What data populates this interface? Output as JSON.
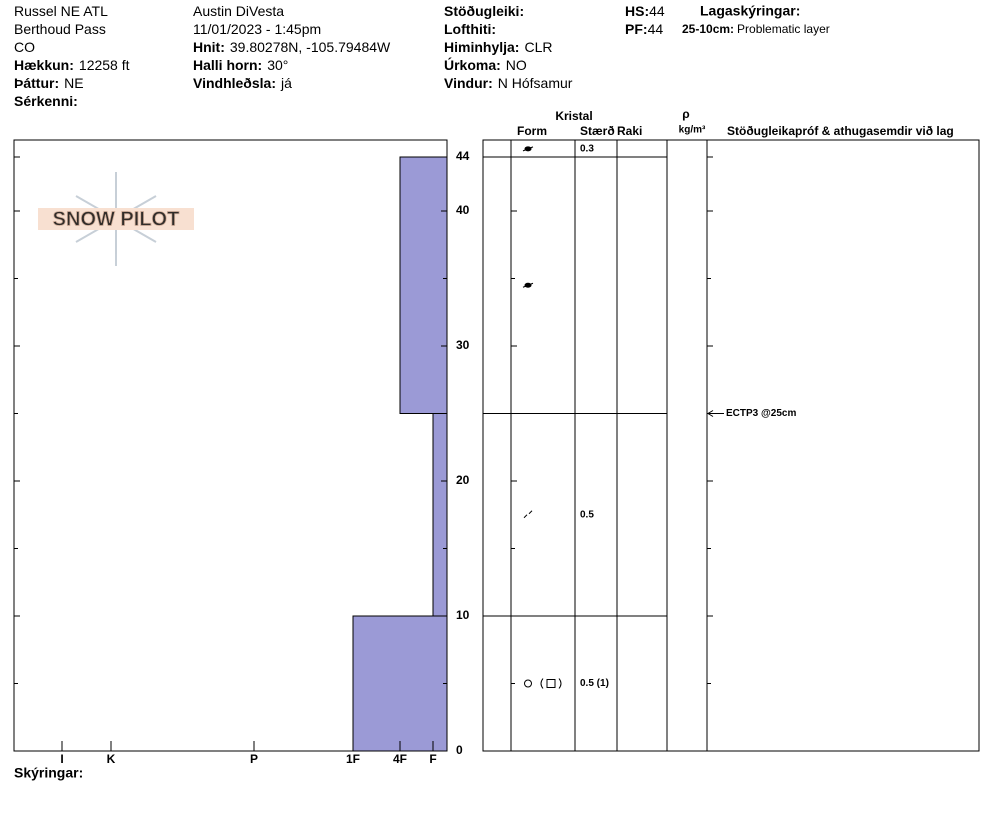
{
  "header": {
    "columns": [
      [
        {
          "value": "Russel NE ATL"
        },
        {
          "value": "Berthoud Pass"
        },
        {
          "value": "CO"
        },
        {
          "label": "Hækkun:",
          "value": "12258 ft"
        },
        {
          "label": "Þáttur:",
          "value": "NE"
        },
        {
          "label": "Sérkenni:"
        }
      ],
      [
        {
          "value": "Austin DiVesta"
        },
        {
          "value": "11/01/2023 - 1:45pm"
        },
        {
          "label": "Hnit:",
          "value": "39.80278N, -105.79484W"
        },
        {
          "label": "Halli horn:",
          "value": "30°"
        },
        {
          "label": "Vindhleðsla:",
          "value": "já"
        }
      ],
      [
        {
          "label": "Stöðugleiki:"
        },
        {
          "label": "Lofthiti:"
        },
        {
          "label": "Himinhylja:",
          "value": "CLR"
        },
        {
          "label": "Úrkoma:",
          "value": "NO"
        },
        {
          "label": "Vindur:",
          "value": "N Hófsamur"
        }
      ],
      [
        {
          "label": "HS:",
          "value": "44"
        },
        {
          "label": "PF:",
          "value": "44"
        }
      ]
    ],
    "notes": {
      "title": "Lagaskýringar:",
      "items": [
        {
          "label": "25-10cm:",
          "value": "Problematic layer"
        }
      ]
    }
  },
  "logo": "SNOW PILOT",
  "profile": {
    "depth_lim": [
      0,
      44
    ],
    "depth_ticks": [
      0,
      10,
      20,
      30,
      40,
      44
    ],
    "hardness_ticks": [
      {
        "value": 6,
        "label": "I"
      },
      {
        "value": 5,
        "label": "K"
      },
      {
        "value": 4,
        "label": "P"
      },
      {
        "value": 3,
        "label": "1F"
      },
      {
        "value": 2,
        "label": "4F"
      },
      {
        "value": 1,
        "label": "F"
      }
    ],
    "color": "#9b9ad6",
    "layers": [
      {
        "top": 44,
        "bottom": 25,
        "hardness": 2
      },
      {
        "top": 25,
        "bottom": 10,
        "hardness": 1
      },
      {
        "top": 10,
        "bottom": 0,
        "hardness": 3
      }
    ]
  },
  "table": {
    "group_header": "Kristal",
    "headers": [
      "Form",
      "Stærð",
      "Raki"
    ],
    "density_symbol": "ρ",
    "density_unit": "kg/m³",
    "comments_header": "Stöðugleikapróf & athugasemdir við lag",
    "boundaries": [
      44,
      25,
      10
    ],
    "grains": [
      {
        "depth": 44.6,
        "size": "0.3"
      },
      {
        "depth": 34.5
      },
      {
        "depth": 17.5,
        "size": "0.5"
      },
      {
        "depth": 5,
        "size": "0.5 (1)"
      }
    ],
    "tests": [
      {
        "depth": 25,
        "label": "ECTP3 @25cm"
      }
    ]
  },
  "footer": "Skýringar:"
}
